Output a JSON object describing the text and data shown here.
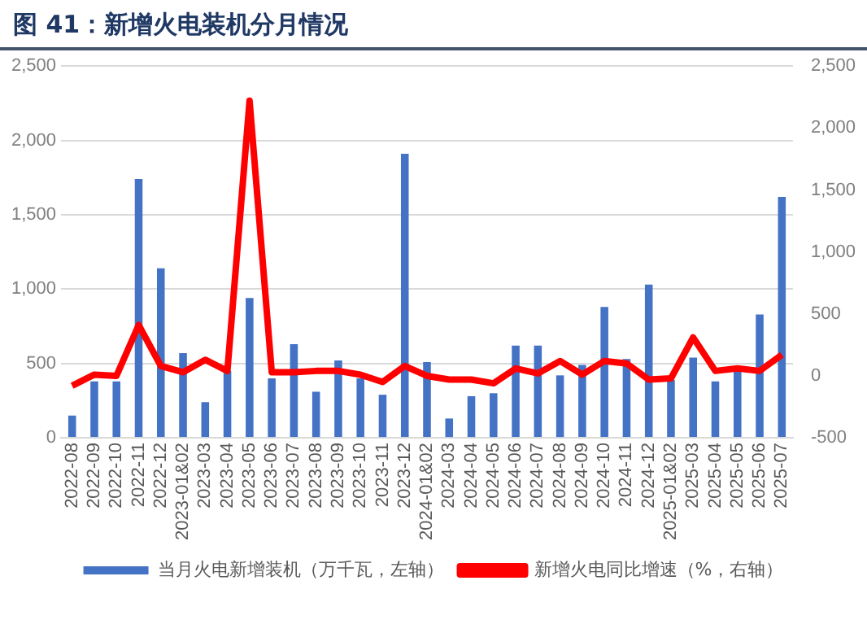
{
  "chart_data": {
    "type": "bar",
    "title": "图 41：新增火电装机分月情况",
    "categories": [
      "2022-08",
      "2022-09",
      "2022-10",
      "2022-11",
      "2022-12",
      "2023-01&02",
      "2023-03",
      "2023-04",
      "2023-05",
      "2023-06",
      "2023-07",
      "2023-08",
      "2023-09",
      "2023-10",
      "2023-11",
      "2023-12",
      "2024-01&02",
      "2024-03",
      "2024-04",
      "2024-05",
      "2024-06",
      "2024-07",
      "2024-08",
      "2024-09",
      "2024-10",
      "2024-11",
      "2024-12",
      "2025-01&02",
      "2025-03",
      "2025-04",
      "2025-05",
      "2025-06",
      "2025-07"
    ],
    "series": [
      {
        "name": "当月火电新增装机（万千瓦，左轴）",
        "color": "#4472c4",
        "values": [
          150,
          380,
          380,
          1740,
          1140,
          570,
          240,
          450,
          940,
          400,
          630,
          310,
          520,
          400,
          290,
          1910,
          510,
          130,
          280,
          300,
          620,
          620,
          420,
          490,
          880,
          530,
          1030,
          390,
          540,
          380,
          450,
          830,
          1620
        ]
      },
      {
        "name": "新增火电同比增速（%，右轴）",
        "type": "line",
        "axis": "y2",
        "color": "#ff0000",
        "values": [
          -80,
          10,
          0,
          410,
          80,
          30,
          130,
          40,
          2220,
          30,
          30,
          40,
          40,
          10,
          -50,
          80,
          0,
          -30,
          -30,
          -60,
          60,
          20,
          120,
          10,
          120,
          100,
          -30,
          -20,
          310,
          40,
          60,
          40,
          170
        ]
      }
    ],
    "ylim": [
      0,
      2500
    ],
    "yticks": [
      0,
      500,
      {
        "value": 1000,
        "label": "1,000"
      },
      {
        "value": 1500,
        "label": "1,500"
      },
      {
        "value": 2000,
        "label": "2,000"
      },
      {
        "value": 2500,
        "label": "2,500"
      }
    ],
    "y2lim": [
      -500,
      2500
    ],
    "y2ticks": [
      -500,
      0,
      500,
      {
        "value": 1000,
        "label": "1,000"
      },
      {
        "value": 1500,
        "label": "1,500"
      },
      {
        "value": 2000,
        "label": "2,000"
      },
      {
        "value": 2500,
        "label": "2,500"
      }
    ],
    "grid": "y",
    "legend": "bottom",
    "line_style": "solid",
    "marker": "none"
  }
}
